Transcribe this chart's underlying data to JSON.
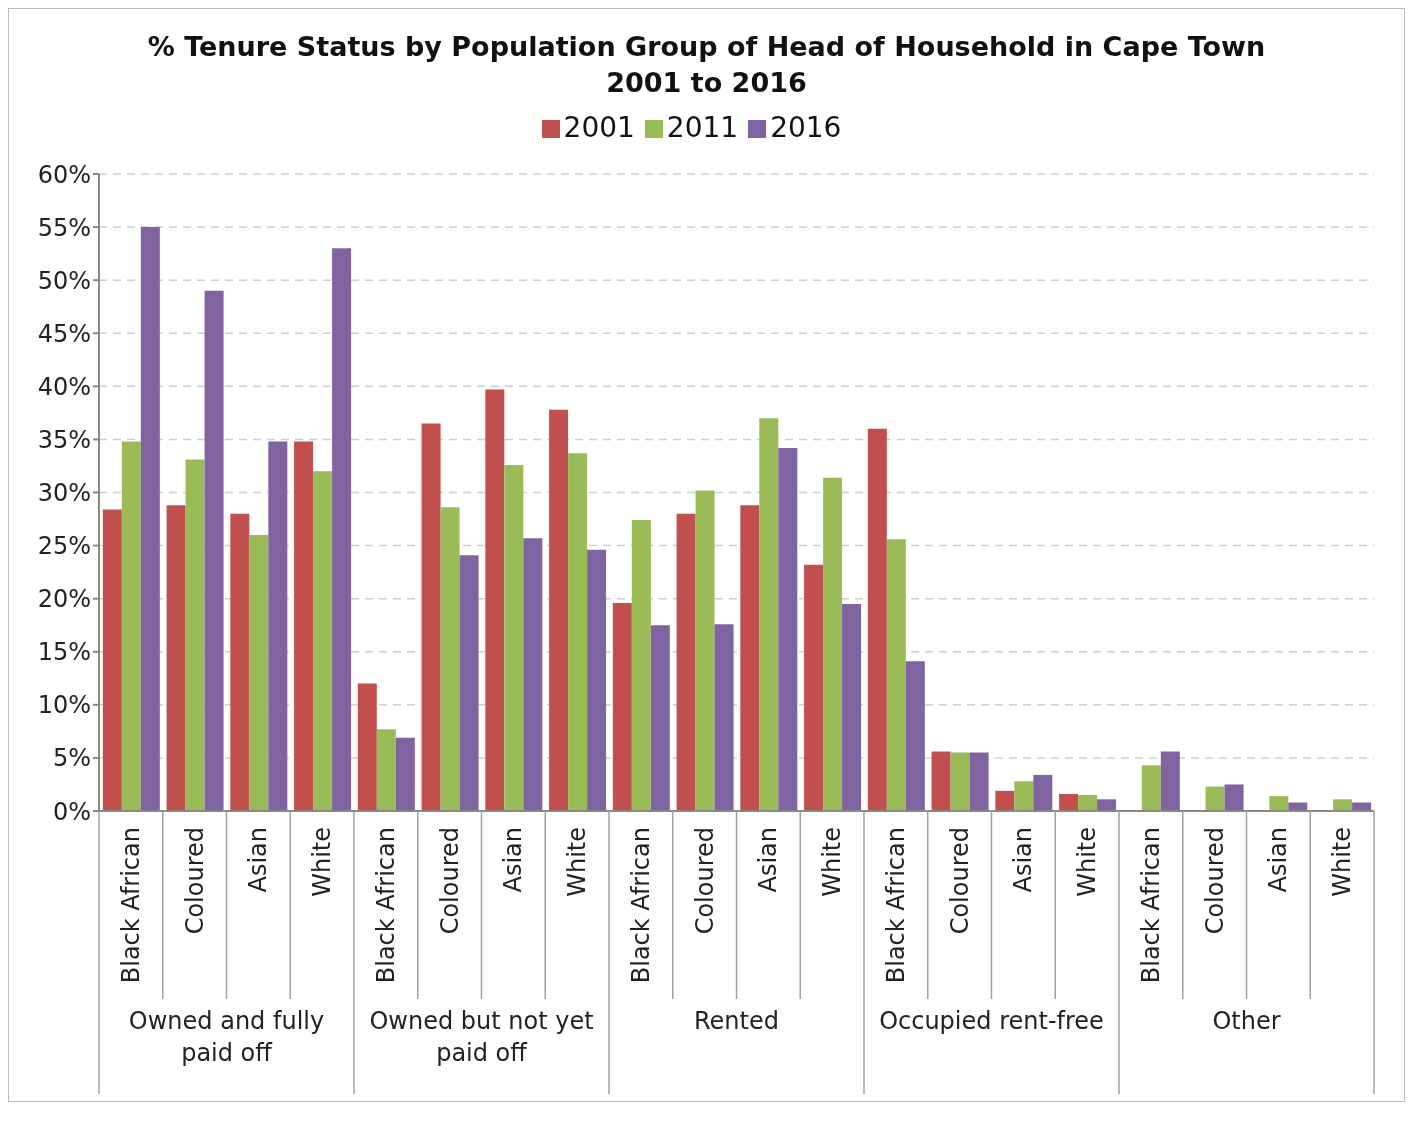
{
  "chart_data": {
    "type": "bar",
    "title": "% Tenure Status by Population Group of Head of Household in Cape Town\n2001 to 2016",
    "categories": [
      "Black African",
      "Coloured",
      "Asian",
      "White",
      "Black African",
      "Coloured",
      "Asian",
      "White",
      "Black African",
      "Coloured",
      "Asian",
      "White",
      "Black African",
      "Coloured",
      "Asian",
      "White",
      "Black African",
      "Coloured",
      "Asian",
      "White"
    ],
    "annotations": [
      "Owned and fully paid off",
      "Owned but not yet paid off",
      "Rented",
      "Occupied rent-free",
      "Other"
    ],
    "series": [
      {
        "name": "2001",
        "color": "#c0504d",
        "values": [
          28.4,
          28.8,
          28.0,
          34.8,
          12.0,
          36.5,
          39.7,
          37.8,
          19.6,
          28.0,
          28.8,
          23.2,
          36.0,
          5.6,
          1.9,
          1.6,
          0,
          0,
          0,
          0
        ]
      },
      {
        "name": "2011",
        "color": "#9bbb59",
        "values": [
          34.8,
          33.1,
          26.0,
          32.0,
          7.7,
          28.6,
          32.6,
          33.7,
          27.4,
          30.2,
          37.0,
          31.4,
          25.6,
          5.5,
          2.8,
          1.5,
          4.3,
          2.3,
          1.4,
          1.1
        ]
      },
      {
        "name": "2016",
        "color": "#8064a2",
        "values": [
          55.0,
          49.0,
          34.8,
          53.0,
          6.9,
          24.1,
          25.7,
          24.6,
          17.5,
          17.6,
          34.2,
          19.5,
          14.1,
          5.5,
          3.4,
          1.1,
          5.6,
          2.5,
          0.8,
          0.8
        ]
      }
    ],
    "ylim": [
      0,
      60
    ],
    "yticks": [
      {
        "value": 0,
        "label": "0%"
      },
      {
        "value": 5,
        "label": "5%"
      },
      {
        "value": 10,
        "label": "10%"
      },
      {
        "value": 15,
        "label": "15%"
      },
      {
        "value": 20,
        "label": "20%"
      },
      {
        "value": 25,
        "label": "25%"
      },
      {
        "value": 30,
        "label": "30%"
      },
      {
        "value": 35,
        "label": "35%"
      },
      {
        "value": 40,
        "label": "40%"
      },
      {
        "value": 45,
        "label": "45%"
      },
      {
        "value": 50,
        "label": "50%"
      },
      {
        "value": 55,
        "label": "55%"
      },
      {
        "value": 60,
        "label": "60%"
      }
    ],
    "grid": "y",
    "legend": "top"
  }
}
